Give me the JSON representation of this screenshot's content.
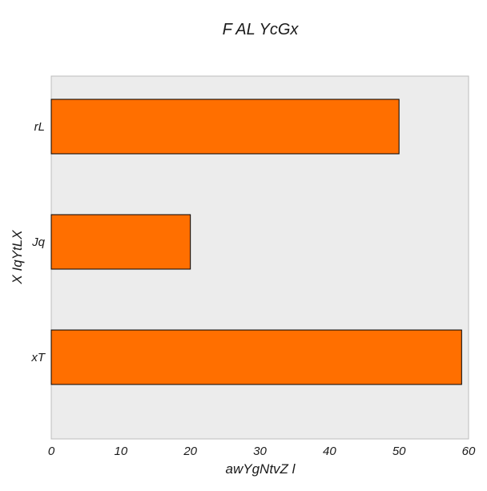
{
  "chart_data": {
    "type": "bar",
    "orientation": "horizontal",
    "title": "F AL YcGx",
    "xlabel": "awYgNtvZ  l",
    "ylabel": "X IqYtLX",
    "categories": [
      "rL",
      "Jq",
      "xT"
    ],
    "values": [
      50,
      20,
      59
    ],
    "xlim": [
      0,
      60
    ],
    "xticks": [
      "0",
      "10",
      "20",
      "30",
      "40",
      "50",
      "60"
    ],
    "grid": false,
    "legend": "none"
  },
  "colors": {
    "bar_fill": "#ff6f00",
    "bar_edge": "#000000",
    "plot_background": "#ececec",
    "plot_border": "#bcbcbc"
  }
}
